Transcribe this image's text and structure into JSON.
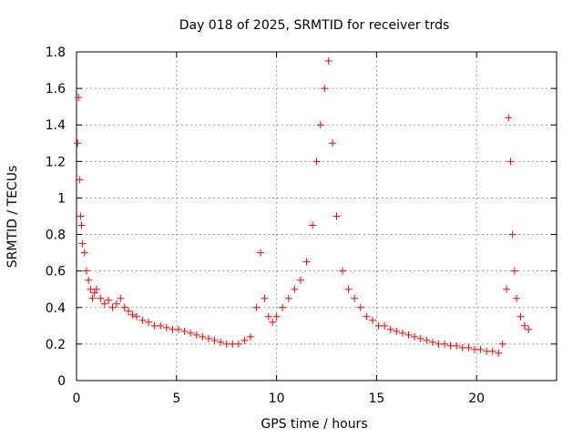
{
  "chart_data": {
    "type": "scatter",
    "title": "Day 018 of 2025, SRMTID for receiver trds",
    "xlabel": "GPS time / hours",
    "ylabel": "SRMTID / TECUs",
    "xlim": [
      0,
      24
    ],
    "ylim": [
      0,
      1.8
    ],
    "xticks": [
      0,
      5,
      10,
      15,
      20
    ],
    "xtick_labels": [
      "0",
      "5",
      "10",
      "15",
      "20"
    ],
    "yticks": [
      0,
      0.2,
      0.4,
      0.6,
      0.8,
      1.0,
      1.2,
      1.4,
      1.6,
      1.8
    ],
    "ytick_labels": [
      "0",
      "0.2",
      "0.4",
      "0.6",
      "0.8",
      "1",
      "1.2",
      "1.4",
      "1.6",
      "1.8"
    ],
    "grid": true,
    "marker": "+",
    "marker_color": "#ff0000",
    "series": [
      {
        "name": "SRMTID",
        "x": [
          0.05,
          0.1,
          0.15,
          0.2,
          0.25,
          0.3,
          0.4,
          0.5,
          0.6,
          0.7,
          0.8,
          0.9,
          1.0,
          1.2,
          1.4,
          1.6,
          1.8,
          2.0,
          2.2,
          2.4,
          2.6,
          2.8,
          3.0,
          3.3,
          3.6,
          3.9,
          4.2,
          4.5,
          4.8,
          5.1,
          5.4,
          5.7,
          6.0,
          6.3,
          6.6,
          6.9,
          7.2,
          7.5,
          7.8,
          8.1,
          8.4,
          8.7,
          9.0,
          9.2,
          9.4,
          9.6,
          9.8,
          10.0,
          10.3,
          10.6,
          10.9,
          11.2,
          11.5,
          11.8,
          12.0,
          12.2,
          12.4,
          12.6,
          12.8,
          13.0,
          13.3,
          13.6,
          13.9,
          14.2,
          14.5,
          14.8,
          15.1,
          15.4,
          15.7,
          16.0,
          16.3,
          16.6,
          16.9,
          17.2,
          17.5,
          17.8,
          18.1,
          18.4,
          18.7,
          19.0,
          19.3,
          19.6,
          19.9,
          20.2,
          20.5,
          20.8,
          21.1,
          21.3,
          21.5,
          21.6,
          21.7,
          21.8,
          21.9,
          22.0,
          22.2,
          22.4,
          22.6
        ],
        "y": [
          1.3,
          1.55,
          1.1,
          0.9,
          0.85,
          0.75,
          0.7,
          0.6,
          0.55,
          0.5,
          0.45,
          0.48,
          0.5,
          0.45,
          0.42,
          0.44,
          0.4,
          0.42,
          0.45,
          0.4,
          0.38,
          0.36,
          0.35,
          0.33,
          0.32,
          0.3,
          0.3,
          0.29,
          0.28,
          0.28,
          0.27,
          0.26,
          0.25,
          0.24,
          0.23,
          0.22,
          0.21,
          0.2,
          0.2,
          0.2,
          0.22,
          0.24,
          0.4,
          0.7,
          0.45,
          0.35,
          0.32,
          0.35,
          0.4,
          0.45,
          0.5,
          0.55,
          0.65,
          0.85,
          1.2,
          1.4,
          1.6,
          1.75,
          1.3,
          0.9,
          0.6,
          0.5,
          0.45,
          0.4,
          0.35,
          0.33,
          0.3,
          0.3,
          0.28,
          0.27,
          0.26,
          0.25,
          0.24,
          0.23,
          0.22,
          0.21,
          0.2,
          0.2,
          0.19,
          0.19,
          0.18,
          0.18,
          0.17,
          0.17,
          0.16,
          0.16,
          0.15,
          0.2,
          0.5,
          1.44,
          1.2,
          0.8,
          0.6,
          0.45,
          0.35,
          0.3,
          0.28
        ]
      }
    ]
  }
}
